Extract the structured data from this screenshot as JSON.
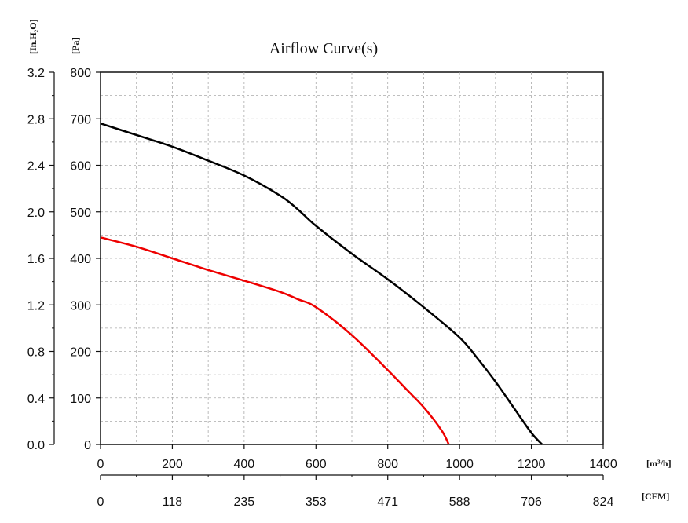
{
  "chart_data": {
    "type": "line",
    "title": "Airflow Curve(s)",
    "x_axis_primary": {
      "unit": "[m³/h]",
      "range": [
        0,
        1400
      ],
      "ticks": [
        "0",
        "200",
        "400",
        "600",
        "800",
        "1000",
        "1200",
        "1400"
      ]
    },
    "x_axis_secondary": {
      "unit": "[CFM]",
      "ticks": [
        "0",
        "118",
        "235",
        "353",
        "471",
        "588",
        "706",
        "824"
      ]
    },
    "y_axis_primary": {
      "unit": "[Pa]",
      "range": [
        0,
        800
      ],
      "ticks": [
        "0",
        "100",
        "200",
        "300",
        "400",
        "500",
        "600",
        "700",
        "800"
      ]
    },
    "y_axis_secondary": {
      "unit": "[In.H₂O]",
      "ticks": [
        "0.0",
        "0.4",
        "0.8",
        "1.2",
        "1.6",
        "2.0",
        "2.4",
        "2.8",
        "3.2"
      ]
    },
    "grid": true,
    "series": [
      {
        "color": "#000000",
        "points": [
          [
            0,
            690
          ],
          [
            100,
            665
          ],
          [
            200,
            640
          ],
          [
            300,
            610
          ],
          [
            400,
            578
          ],
          [
            500,
            535
          ],
          [
            550,
            505
          ],
          [
            600,
            470
          ],
          [
            700,
            410
          ],
          [
            800,
            355
          ],
          [
            900,
            295
          ],
          [
            1000,
            230
          ],
          [
            1050,
            185
          ],
          [
            1100,
            135
          ],
          [
            1150,
            80
          ],
          [
            1200,
            25
          ],
          [
            1230,
            0
          ]
        ]
      },
      {
        "color": "#ee0000",
        "points": [
          [
            0,
            445
          ],
          [
            100,
            425
          ],
          [
            200,
            400
          ],
          [
            300,
            375
          ],
          [
            400,
            352
          ],
          [
            500,
            328
          ],
          [
            550,
            312
          ],
          [
            600,
            295
          ],
          [
            700,
            235
          ],
          [
            800,
            160
          ],
          [
            850,
            120
          ],
          [
            900,
            80
          ],
          [
            950,
            30
          ],
          [
            970,
            0
          ]
        ]
      }
    ]
  }
}
